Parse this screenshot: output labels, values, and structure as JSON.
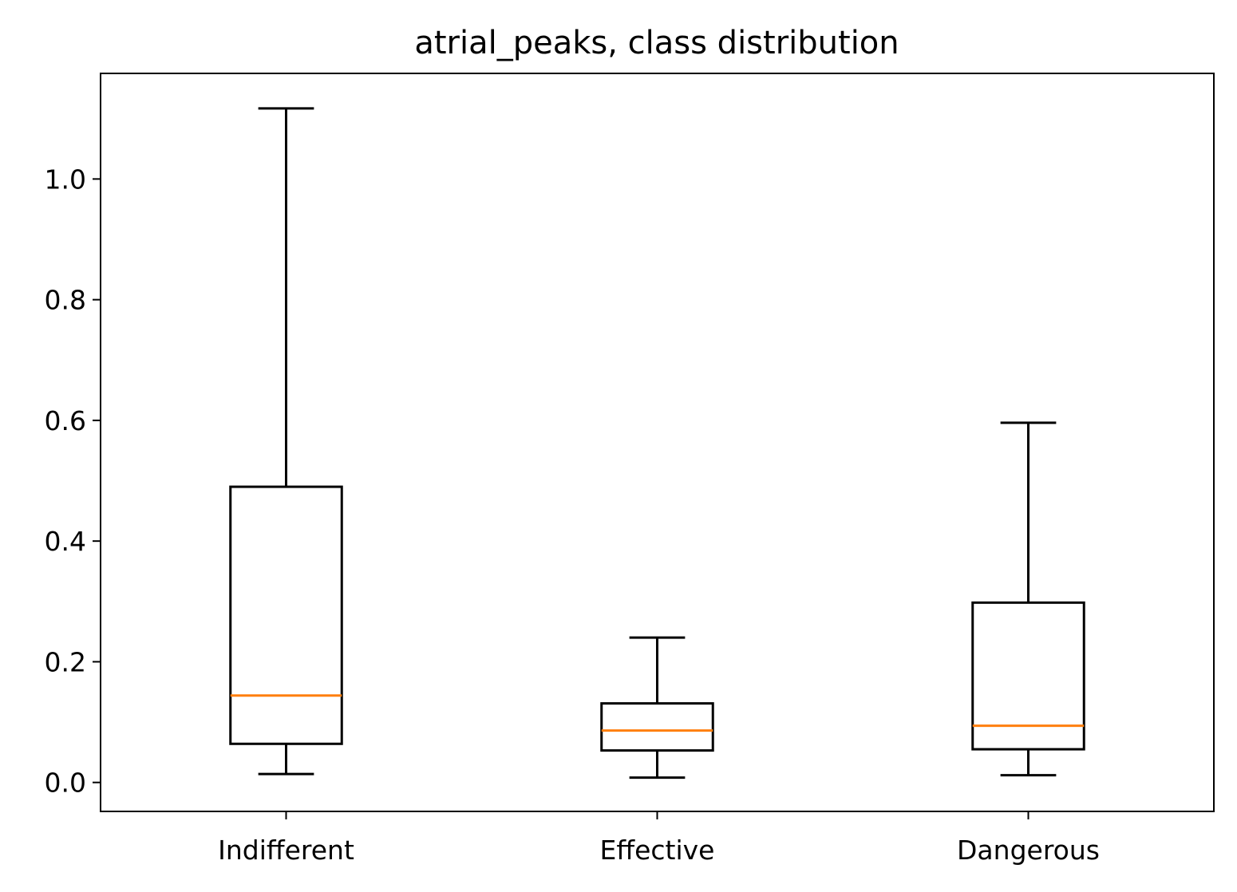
{
  "chart_data": {
    "type": "box",
    "title": "atrial_peaks, class distribution",
    "xlabel": "",
    "ylabel": "",
    "ylim": [
      -0.048,
      1.175
    ],
    "yticks": [
      0.0,
      0.2,
      0.4,
      0.6,
      0.8,
      1.0
    ],
    "ytick_labels": [
      "0.0",
      "0.2",
      "0.4",
      "0.6",
      "0.8",
      "1.0"
    ],
    "categories": [
      "Indifferent",
      "Effective",
      "Dangerous"
    ],
    "boxes": [
      {
        "name": "Indifferent",
        "whislo": 0.014,
        "q1": 0.064,
        "median": 0.144,
        "q3": 0.49,
        "whishi": 1.117
      },
      {
        "name": "Effective",
        "whislo": 0.008,
        "q1": 0.053,
        "median": 0.086,
        "q3": 0.131,
        "whishi": 0.24
      },
      {
        "name": "Dangerous",
        "whislo": 0.012,
        "q1": 0.055,
        "median": 0.094,
        "q3": 0.298,
        "whishi": 0.596
      }
    ],
    "colors": {
      "box": "#000000",
      "median": "#ff7f0e",
      "axes": "#000000"
    }
  }
}
